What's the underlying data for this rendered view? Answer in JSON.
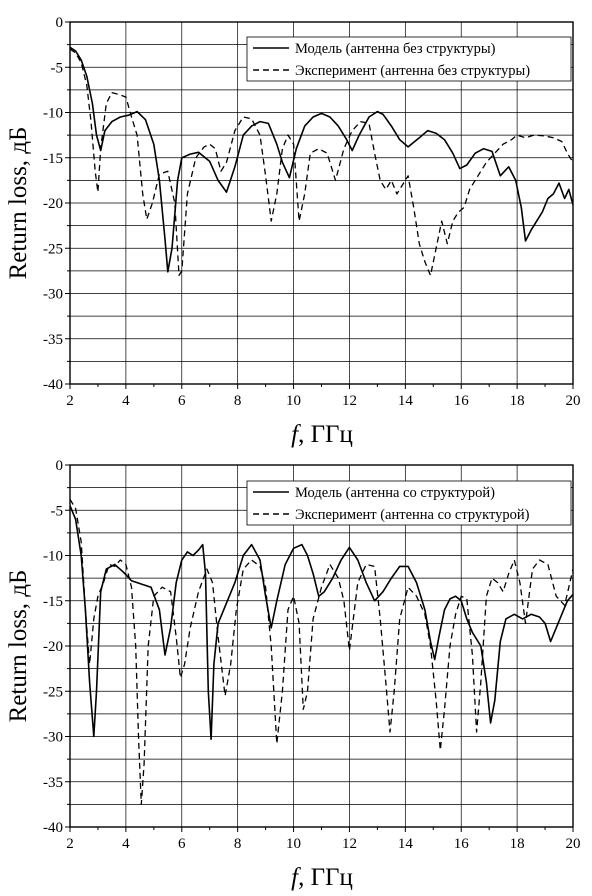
{
  "chart_data": [
    {
      "type": "line",
      "xlabel_var": "f",
      "xlabel_unit": ", ГГц",
      "ylabel": "Return loss, дБ",
      "xlim": [
        2,
        20
      ],
      "ylim": [
        -40,
        0
      ],
      "xticks": [
        2,
        4,
        6,
        8,
        10,
        12,
        14,
        16,
        18,
        20
      ],
      "yticks": [
        0,
        -5,
        -10,
        -15,
        -20,
        -25,
        -30,
        -35,
        -40
      ],
      "grid": true,
      "legend_position": "top-right",
      "series": [
        {
          "name": "Модель (антенна без структуры)",
          "style": "solid",
          "x": [
            2.0,
            2.2,
            2.4,
            2.6,
            2.8,
            2.95,
            3.1,
            3.25,
            3.5,
            3.8,
            4.1,
            4.4,
            4.7,
            5.0,
            5.2,
            5.4,
            5.5,
            5.65,
            5.85,
            6.0,
            6.3,
            6.6,
            7.0,
            7.3,
            7.6,
            7.9,
            8.2,
            8.5,
            8.8,
            9.1,
            9.4,
            9.6,
            9.85,
            10.1,
            10.4,
            10.7,
            11.0,
            11.3,
            11.6,
            11.9,
            12.1,
            12.35,
            12.7,
            13.0,
            13.2,
            13.5,
            13.8,
            14.1,
            14.5,
            14.8,
            15.1,
            15.4,
            15.7,
            15.95,
            16.2,
            16.5,
            16.8,
            17.1,
            17.4,
            17.7,
            17.95,
            18.15,
            18.3,
            18.5,
            18.7,
            18.9,
            19.1,
            19.3,
            19.5,
            19.7,
            19.85,
            20.0
          ],
          "y": [
            -2.8,
            -3.2,
            -4.2,
            -6.0,
            -9.0,
            -12.5,
            -14.2,
            -12.0,
            -11.0,
            -10.5,
            -10.3,
            -9.9,
            -10.8,
            -13.5,
            -17.5,
            -24.0,
            -27.6,
            -25.0,
            -17.5,
            -15.0,
            -14.6,
            -14.4,
            -15.4,
            -17.5,
            -18.8,
            -16.0,
            -12.5,
            -11.5,
            -11.0,
            -11.2,
            -13.5,
            -15.5,
            -17.2,
            -14.0,
            -11.5,
            -10.5,
            -10.1,
            -10.5,
            -11.5,
            -13.0,
            -14.2,
            -12.5,
            -10.5,
            -9.9,
            -10.2,
            -11.5,
            -13.0,
            -13.8,
            -12.8,
            -12.0,
            -12.3,
            -13.0,
            -14.5,
            -16.2,
            -15.8,
            -14.5,
            -14.0,
            -14.3,
            -17.0,
            -16.0,
            -17.5,
            -20.5,
            -24.2,
            -23.0,
            -22.0,
            -21.0,
            -19.5,
            -19.0,
            -17.8,
            -19.5,
            -18.5,
            -20.2
          ]
        },
        {
          "name": "Эксперимент (антенна без структуры)",
          "style": "dashed",
          "x": [
            2.0,
            2.2,
            2.4,
            2.6,
            2.75,
            2.9,
            3.0,
            3.1,
            3.3,
            3.5,
            3.75,
            4.0,
            4.2,
            4.4,
            4.6,
            4.75,
            4.95,
            5.2,
            5.5,
            5.75,
            5.9,
            6.0,
            6.2,
            6.5,
            6.8,
            7.0,
            7.2,
            7.4,
            7.6,
            7.9,
            8.2,
            8.5,
            8.8,
            9.0,
            9.2,
            9.4,
            9.6,
            9.8,
            10.0,
            10.2,
            10.4,
            10.6,
            10.9,
            11.2,
            11.5,
            11.8,
            12.1,
            12.4,
            12.7,
            12.9,
            13.1,
            13.3,
            13.5,
            13.7,
            13.9,
            14.1,
            14.3,
            14.5,
            14.7,
            14.9,
            15.1,
            15.3,
            15.5,
            15.7,
            15.9,
            16.1,
            16.3,
            16.6,
            16.9,
            17.2,
            17.5,
            17.8,
            18.0,
            18.3,
            18.6,
            19.0,
            19.3,
            19.6,
            19.8,
            20.0
          ],
          "y": [
            -3.0,
            -3.4,
            -4.5,
            -7.0,
            -11.0,
            -16.5,
            -18.8,
            -14.0,
            -9.0,
            -7.8,
            -8.0,
            -8.3,
            -10.5,
            -12.5,
            -19.0,
            -21.8,
            -20.0,
            -16.8,
            -16.5,
            -20.0,
            -28.0,
            -27.5,
            -19.0,
            -15.0,
            -13.8,
            -13.5,
            -14.0,
            -16.5,
            -15.5,
            -12.0,
            -10.5,
            -10.7,
            -12.5,
            -17.0,
            -22.0,
            -19.0,
            -14.0,
            -12.5,
            -13.5,
            -22.0,
            -19.0,
            -14.5,
            -14.0,
            -14.5,
            -17.5,
            -14.0,
            -12.0,
            -11.0,
            -11.2,
            -14.5,
            -17.5,
            -18.5,
            -17.5,
            -19.0,
            -18.0,
            -17.0,
            -20.5,
            -24.5,
            -26.5,
            -28.0,
            -25.0,
            -22.0,
            -24.5,
            -22.0,
            -21.0,
            -20.5,
            -18.5,
            -17.0,
            -15.5,
            -14.5,
            -13.5,
            -13.0,
            -12.5,
            -12.8,
            -12.5,
            -12.6,
            -12.8,
            -13.2,
            -14.5,
            -15.5
          ]
        }
      ]
    },
    {
      "type": "line",
      "xlabel_var": "f",
      "xlabel_unit": ", ГГц",
      "ylabel": "Return loss, дБ",
      "xlim": [
        2,
        20
      ],
      "ylim": [
        -40,
        0
      ],
      "xticks": [
        2,
        4,
        6,
        8,
        10,
        12,
        14,
        16,
        18,
        20
      ],
      "yticks": [
        0,
        -5,
        -10,
        -15,
        -20,
        -25,
        -30,
        -35,
        -40
      ],
      "grid": true,
      "legend_position": "top-right",
      "series": [
        {
          "name": "Модель (антенна со структурой)",
          "style": "solid",
          "x": [
            2.0,
            2.2,
            2.4,
            2.55,
            2.7,
            2.85,
            2.95,
            3.1,
            3.3,
            3.6,
            3.9,
            4.2,
            4.6,
            4.9,
            5.2,
            5.4,
            5.6,
            5.8,
            6.0,
            6.2,
            6.4,
            6.6,
            6.75,
            6.85,
            6.95,
            7.05,
            7.15,
            7.3,
            7.5,
            7.7,
            7.9,
            8.2,
            8.5,
            8.8,
            9.0,
            9.2,
            9.4,
            9.7,
            10.0,
            10.3,
            10.5,
            10.7,
            10.9,
            11.1,
            11.4,
            11.7,
            12.0,
            12.3,
            12.6,
            12.9,
            13.2,
            13.5,
            13.8,
            14.1,
            14.4,
            14.7,
            14.9,
            15.05,
            15.2,
            15.4,
            15.6,
            15.8,
            16.0,
            16.2,
            16.4,
            16.7,
            16.9,
            17.05,
            17.2,
            17.4,
            17.6,
            17.9,
            18.2,
            18.5,
            18.8,
            19.0,
            19.2,
            19.4,
            19.6,
            19.8,
            20.0
          ],
          "y": [
            -4.5,
            -6.0,
            -10.0,
            -16.0,
            -24.0,
            -30.0,
            -25.0,
            -14.0,
            -11.5,
            -11.0,
            -11.8,
            -12.8,
            -13.2,
            -13.5,
            -16.0,
            -21.0,
            -18.0,
            -13.0,
            -10.5,
            -9.6,
            -10.0,
            -9.4,
            -8.8,
            -12.0,
            -25.0,
            -30.3,
            -22.0,
            -17.5,
            -16.0,
            -14.5,
            -13.0,
            -10.0,
            -8.8,
            -10.5,
            -14.5,
            -18.0,
            -15.0,
            -11.0,
            -9.2,
            -8.8,
            -10.0,
            -12.0,
            -14.5,
            -14.0,
            -12.5,
            -10.5,
            -9.1,
            -10.5,
            -13.0,
            -15.0,
            -14.0,
            -12.5,
            -11.2,
            -11.2,
            -13.0,
            -16.0,
            -19.5,
            -21.5,
            -19.0,
            -16.0,
            -14.8,
            -14.5,
            -15.0,
            -17.0,
            -18.5,
            -20.0,
            -24.0,
            -28.5,
            -26.0,
            -19.5,
            -17.0,
            -16.5,
            -17.0,
            -16.5,
            -16.8,
            -17.5,
            -19.5,
            -18.0,
            -16.5,
            -15.0,
            -14.3
          ]
        },
        {
          "name": "Эксперимент (антенна со структурой)",
          "style": "dashed",
          "x": [
            2.0,
            2.2,
            2.4,
            2.55,
            2.7,
            2.85,
            3.0,
            3.2,
            3.4,
            3.6,
            3.8,
            4.0,
            4.2,
            4.35,
            4.45,
            4.55,
            4.65,
            4.8,
            5.0,
            5.3,
            5.6,
            5.8,
            5.95,
            6.1,
            6.3,
            6.6,
            6.9,
            7.1,
            7.3,
            7.55,
            7.75,
            7.95,
            8.2,
            8.5,
            8.8,
            9.0,
            9.2,
            9.4,
            9.6,
            9.8,
            10.0,
            10.2,
            10.35,
            10.5,
            10.7,
            11.0,
            11.3,
            11.6,
            11.8,
            12.0,
            12.3,
            12.6,
            12.9,
            13.1,
            13.3,
            13.45,
            13.6,
            13.8,
            14.1,
            14.4,
            14.7,
            14.9,
            15.1,
            15.25,
            15.4,
            15.6,
            15.8,
            16.0,
            16.2,
            16.4,
            16.55,
            16.7,
            16.9,
            17.1,
            17.3,
            17.5,
            17.7,
            17.9,
            18.1,
            18.3,
            18.55,
            18.8,
            19.1,
            19.4,
            19.7,
            20.0
          ],
          "y": [
            -3.8,
            -4.8,
            -8.5,
            -16.0,
            -22.0,
            -17.0,
            -14.5,
            -13.0,
            -11.0,
            -11.2,
            -10.5,
            -11.0,
            -13.5,
            -20.0,
            -30.0,
            -37.5,
            -33.0,
            -20.0,
            -14.5,
            -13.5,
            -14.0,
            -19.0,
            -23.5,
            -22.0,
            -18.0,
            -14.0,
            -11.5,
            -13.0,
            -19.0,
            -25.5,
            -22.0,
            -16.0,
            -11.5,
            -10.5,
            -11.2,
            -13.5,
            -20.0,
            -30.8,
            -25.0,
            -16.0,
            -14.5,
            -17.5,
            -27.0,
            -25.0,
            -17.0,
            -13.5,
            -11.0,
            -12.5,
            -15.0,
            -20.5,
            -13.0,
            -11.0,
            -11.2,
            -17.0,
            -24.0,
            -29.5,
            -25.0,
            -17.0,
            -13.5,
            -14.5,
            -16.5,
            -20.0,
            -26.0,
            -31.5,
            -27.0,
            -20.0,
            -16.5,
            -14.5,
            -14.8,
            -21.0,
            -29.5,
            -24.0,
            -14.5,
            -12.5,
            -13.0,
            -14.0,
            -12.0,
            -10.5,
            -13.0,
            -17.5,
            -11.5,
            -10.5,
            -11.0,
            -14.5,
            -15.5,
            -11.5
          ]
        }
      ]
    }
  ]
}
